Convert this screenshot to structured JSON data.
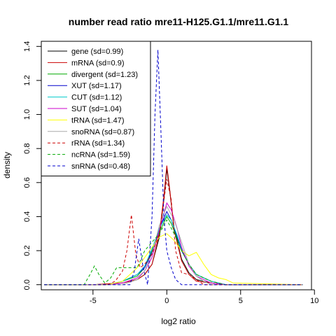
{
  "chart_data": {
    "type": "line",
    "title": "number read ratio mre11-H125.G1.1/mre11.G1.1",
    "xlabel": "log2 ratio",
    "ylabel": "density",
    "xlim": [
      -8.5,
      9.8
    ],
    "ylim": [
      -0.03,
      1.43
    ],
    "xticks": [
      -5,
      0,
      5,
      10
    ],
    "yticks": [
      0.0,
      0.2,
      0.4,
      0.6,
      0.8,
      1.0,
      1.2,
      1.4
    ],
    "legend_position": "top-left",
    "grid": false,
    "series": [
      {
        "name": "gene (sd=0.99)",
        "color": "#000000",
        "dash": "solid",
        "x": [
          -8.3,
          -5.0,
          -3.0,
          -2.0,
          -1.5,
          -1.0,
          -0.5,
          -0.2,
          0.0,
          0.2,
          0.5,
          1.0,
          1.5,
          2.0,
          3.0,
          4.0,
          5.0,
          9.2
        ],
        "y": [
          0,
          0,
          0.01,
          0.03,
          0.06,
          0.12,
          0.28,
          0.5,
          0.68,
          0.55,
          0.33,
          0.15,
          0.07,
          0.03,
          0.01,
          0,
          0,
          0
        ]
      },
      {
        "name": "mRNA (sd=0.9)",
        "color": "#cc0000",
        "dash": "solid",
        "x": [
          -8.3,
          -5.0,
          -3.0,
          -2.0,
          -1.5,
          -1.0,
          -0.5,
          -0.2,
          0.0,
          0.2,
          0.5,
          1.0,
          1.5,
          2.0,
          3.0,
          4.0,
          9.2
        ],
        "y": [
          0,
          0,
          0.01,
          0.03,
          0.06,
          0.12,
          0.3,
          0.52,
          0.7,
          0.56,
          0.32,
          0.14,
          0.06,
          0.02,
          0.01,
          0,
          0
        ]
      },
      {
        "name": "divergent (sd=1.23)",
        "color": "#00aa00",
        "dash": "solid",
        "x": [
          -8.3,
          -4.0,
          -3.0,
          -2.0,
          -1.5,
          -1.0,
          -0.5,
          0.0,
          0.3,
          0.7,
          1.0,
          1.5,
          2.0,
          3.0,
          4.0,
          9.2
        ],
        "y": [
          0,
          0,
          0.02,
          0.05,
          0.1,
          0.2,
          0.31,
          0.4,
          0.36,
          0.27,
          0.2,
          0.12,
          0.06,
          0.02,
          0,
          0
        ]
      },
      {
        "name": "XUT (sd=1.17)",
        "color": "#0000cc",
        "dash": "solid",
        "x": [
          -8.3,
          -4.0,
          -3.0,
          -2.0,
          -1.5,
          -1.0,
          -0.5,
          0.0,
          0.3,
          0.7,
          1.0,
          1.5,
          2.0,
          3.0,
          4.0,
          9.2
        ],
        "y": [
          0,
          0,
          0.02,
          0.06,
          0.1,
          0.19,
          0.33,
          0.43,
          0.38,
          0.28,
          0.2,
          0.12,
          0.06,
          0.02,
          0,
          0
        ]
      },
      {
        "name": "CUT (sd=1.12)",
        "color": "#00cccc",
        "dash": "solid",
        "x": [
          -8.3,
          -4.0,
          -3.0,
          -2.0,
          -1.5,
          -1.0,
          -0.5,
          0.0,
          0.3,
          0.7,
          1.0,
          1.5,
          2.0,
          3.0,
          4.0,
          9.2
        ],
        "y": [
          0,
          0,
          0.02,
          0.06,
          0.11,
          0.21,
          0.33,
          0.41,
          0.38,
          0.29,
          0.21,
          0.12,
          0.06,
          0.02,
          0,
          0
        ]
      },
      {
        "name": "SUT (sd=1.04)",
        "color": "#cc00cc",
        "dash": "solid",
        "x": [
          -8.3,
          -4.0,
          -3.0,
          -2.0,
          -1.5,
          -1.0,
          -0.5,
          0.0,
          0.3,
          0.7,
          1.0,
          1.5,
          2.0,
          3.0,
          4.0,
          9.2
        ],
        "y": [
          0,
          0,
          0.01,
          0.04,
          0.08,
          0.16,
          0.32,
          0.48,
          0.44,
          0.33,
          0.22,
          0.11,
          0.05,
          0.01,
          0,
          0
        ]
      },
      {
        "name": "tRNA (sd=1.47)",
        "color": "#ffff00",
        "dash": "solid",
        "x": [
          -8.3,
          -4.0,
          -3.0,
          -2.5,
          -2.0,
          -1.5,
          -1.0,
          -0.5,
          0.0,
          0.5,
          1.0,
          1.5,
          2.0,
          2.5,
          3.0,
          3.5,
          4.0,
          4.5,
          9.2
        ],
        "y": [
          0,
          0,
          0.02,
          0.06,
          0.1,
          0.16,
          0.22,
          0.28,
          0.3,
          0.26,
          0.2,
          0.17,
          0.19,
          0.12,
          0.06,
          0.04,
          0.03,
          0.01,
          0
        ]
      },
      {
        "name": "snoRNA (sd=0.87)",
        "color": "#aaaaaa",
        "dash": "solid",
        "x": [
          -8.3,
          -3.0,
          -2.0,
          -1.5,
          -1.0,
          -0.5,
          0.0,
          0.5,
          1.0,
          1.5,
          2.0,
          2.5,
          3.0,
          9.2
        ],
        "y": [
          0,
          0,
          0.03,
          0.08,
          0.18,
          0.35,
          0.46,
          0.38,
          0.25,
          0.12,
          0.05,
          0.02,
          0,
          0
        ]
      },
      {
        "name": "rRNA (sd=1.34)",
        "color": "#cc0000",
        "dash": "dashed",
        "x": [
          -8.3,
          -4.0,
          -3.5,
          -3.0,
          -2.7,
          -2.4,
          -2.1,
          -1.8,
          -1.5,
          -1.0,
          -0.5,
          0.0,
          0.3,
          0.6,
          1.0,
          1.5,
          2.0,
          2.5,
          9.2
        ],
        "y": [
          0,
          0,
          0.02,
          0.08,
          0.2,
          0.41,
          0.18,
          0.1,
          0.12,
          0.18,
          0.3,
          0.62,
          0.5,
          0.2,
          0.07,
          0.06,
          0.03,
          0,
          0
        ]
      },
      {
        "name": "ncRNA (sd=1.59)",
        "color": "#00aa00",
        "dash": "dashed",
        "x": [
          -8.3,
          -5.6,
          -5.2,
          -4.9,
          -4.6,
          -4.2,
          -3.8,
          -3.4,
          -3.0,
          -2.0,
          -1.5,
          -1.0,
          -0.5,
          0.0,
          0.5,
          1.0,
          1.5,
          2.0,
          3.0,
          4.0,
          9.2
        ],
        "y": [
          0,
          0,
          0.06,
          0.11,
          0.06,
          0.01,
          0.04,
          0.1,
          0.1,
          0.1,
          0.2,
          0.25,
          0.3,
          0.38,
          0.3,
          0.2,
          0.12,
          0.06,
          0.02,
          0,
          0
        ]
      },
      {
        "name": "snRNA (sd=0.48)",
        "color": "#0000cc",
        "dash": "dashed",
        "x": [
          -8.3,
          -2.5,
          -2.2,
          -1.9,
          -1.6,
          -1.3,
          -1.0,
          -0.8,
          -0.6,
          -0.4,
          -0.2,
          0.0,
          0.3,
          0.6,
          1.0,
          9.2
        ],
        "y": [
          0,
          0,
          0.08,
          0.27,
          0.1,
          0.0,
          0.4,
          1.0,
          1.38,
          0.9,
          0.4,
          0.2,
          0.1,
          0.03,
          0,
          0
        ]
      }
    ]
  }
}
